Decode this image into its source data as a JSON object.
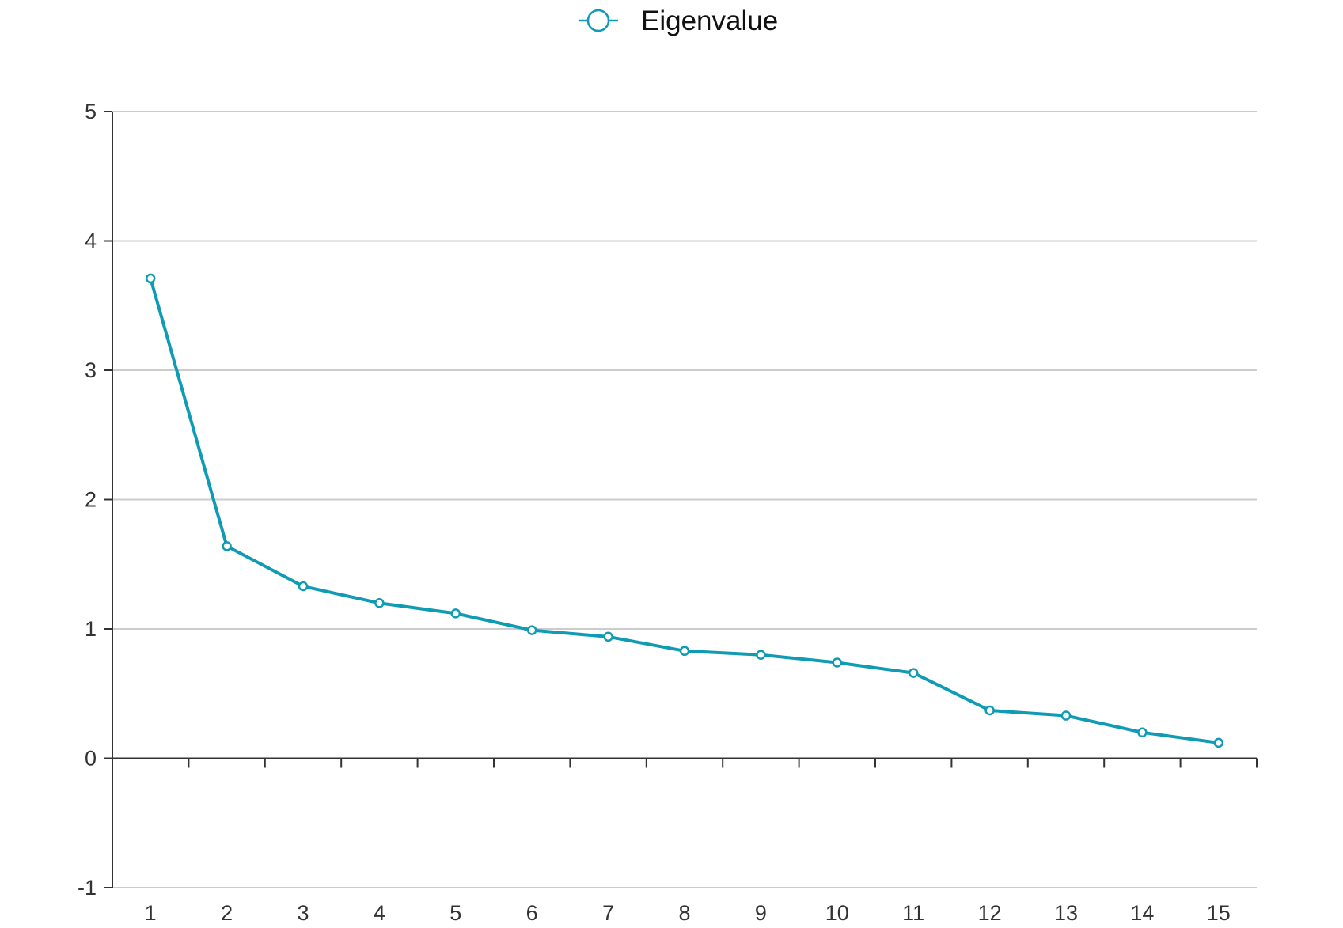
{
  "chart_data": {
    "type": "line",
    "x": [
      1,
      2,
      3,
      4,
      5,
      6,
      7,
      8,
      9,
      10,
      11,
      12,
      13,
      14,
      15
    ],
    "series": [
      {
        "name": "Eigenvalue",
        "values": [
          3.71,
          1.64,
          1.33,
          1.2,
          1.12,
          0.99,
          0.94,
          0.83,
          0.8,
          0.74,
          0.66,
          0.37,
          0.33,
          0.2,
          0.12
        ],
        "color": "#0f9bb3"
      }
    ],
    "x_tick_labels": [
      "1",
      "2",
      "3",
      "4",
      "5",
      "6",
      "7",
      "8",
      "9",
      "10",
      "11",
      "12",
      "13",
      "14",
      "15"
    ],
    "y_tick_labels": [
      "-1",
      "0",
      "1",
      "2",
      "3",
      "4",
      "5"
    ],
    "y_ticks": [
      -1,
      0,
      1,
      2,
      3,
      4,
      5
    ],
    "ylim": [
      -1,
      5
    ],
    "title": "",
    "xlabel": "",
    "ylabel": "",
    "legend": {
      "position": "top-center",
      "entries": [
        "Eigenvalue"
      ]
    },
    "grid": true,
    "colors": {
      "line": "#0f9bb3",
      "grid": "#cccccc",
      "axis": "#333333",
      "marker_fill": "#ffffff"
    }
  }
}
